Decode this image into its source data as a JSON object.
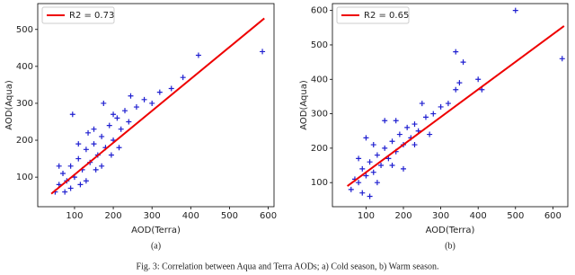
{
  "caption": "Fig. 3: Correlation between Aqua and Terra AODs; a) Cold season, b) Warm season.",
  "chart_data": [
    {
      "type": "scatter",
      "label": "(a)",
      "xlabel": "AOD(Terra)",
      "ylabel": "AOD(Aqua)",
      "xlim": [
        5,
        615
      ],
      "ylim": [
        20,
        570
      ],
      "xticks": [
        100,
        200,
        300,
        400,
        500,
        600
      ],
      "yticks": [
        100,
        200,
        300,
        400,
        500
      ],
      "legend": "upper left",
      "points": {
        "color": "#1f1fd0",
        "x": [
          50,
          60,
          70,
          80,
          90,
          100,
          110,
          120,
          130,
          140,
          150,
          160,
          170,
          180,
          190,
          200,
          210,
          220,
          230,
          240,
          260,
          280,
          300,
          320,
          350,
          380,
          420,
          585,
          60,
          75,
          95,
          115,
          135,
          155,
          175,
          195,
          215,
          245,
          130,
          90,
          150,
          110,
          200,
          170
        ],
        "y": [
          60,
          80,
          110,
          90,
          130,
          100,
          150,
          120,
          175,
          140,
          190,
          160,
          210,
          180,
          240,
          200,
          260,
          230,
          280,
          250,
          290,
          310,
          300,
          330,
          340,
          370,
          430,
          440,
          130,
          60,
          270,
          80,
          220,
          120,
          300,
          160,
          180,
          320,
          90,
          70,
          230,
          190,
          270,
          130
        ]
      },
      "series": [
        {
          "name": "R2 = 0.73",
          "color": "#ee0000",
          "x": [
            40,
            590
          ],
          "y": [
            55,
            530
          ]
        }
      ]
    },
    {
      "type": "scatter",
      "label": "(b)",
      "xlabel": "AOD(Terra)",
      "ylabel": "AOD(Aqua)",
      "xlim": [
        10,
        640
      ],
      "ylim": [
        30,
        620
      ],
      "xticks": [
        100,
        200,
        300,
        400,
        500,
        600
      ],
      "yticks": [
        100,
        200,
        300,
        400,
        500,
        600
      ],
      "legend": "upper left",
      "points": {
        "color": "#1f1fd0",
        "x": [
          60,
          70,
          80,
          90,
          100,
          110,
          120,
          130,
          140,
          150,
          160,
          170,
          180,
          190,
          200,
          210,
          220,
          230,
          240,
          260,
          280,
          300,
          320,
          340,
          350,
          400,
          410,
          500,
          625,
          340,
          360,
          80,
          100,
          110,
          150,
          130,
          200,
          250,
          170,
          120,
          90,
          270,
          180,
          230
        ],
        "y": [
          80,
          110,
          100,
          140,
          120,
          160,
          130,
          180,
          150,
          200,
          170,
          220,
          190,
          240,
          210,
          260,
          230,
          270,
          250,
          290,
          300,
          320,
          330,
          370,
          390,
          400,
          370,
          600,
          460,
          480,
          450,
          170,
          230,
          60,
          280,
          100,
          140,
          330,
          150,
          210,
          70,
          240,
          280,
          210
        ]
      },
      "series": [
        {
          "name": "R2 = 0.65",
          "color": "#ee0000",
          "x": [
            50,
            630
          ],
          "y": [
            90,
            555
          ]
        }
      ]
    }
  ]
}
